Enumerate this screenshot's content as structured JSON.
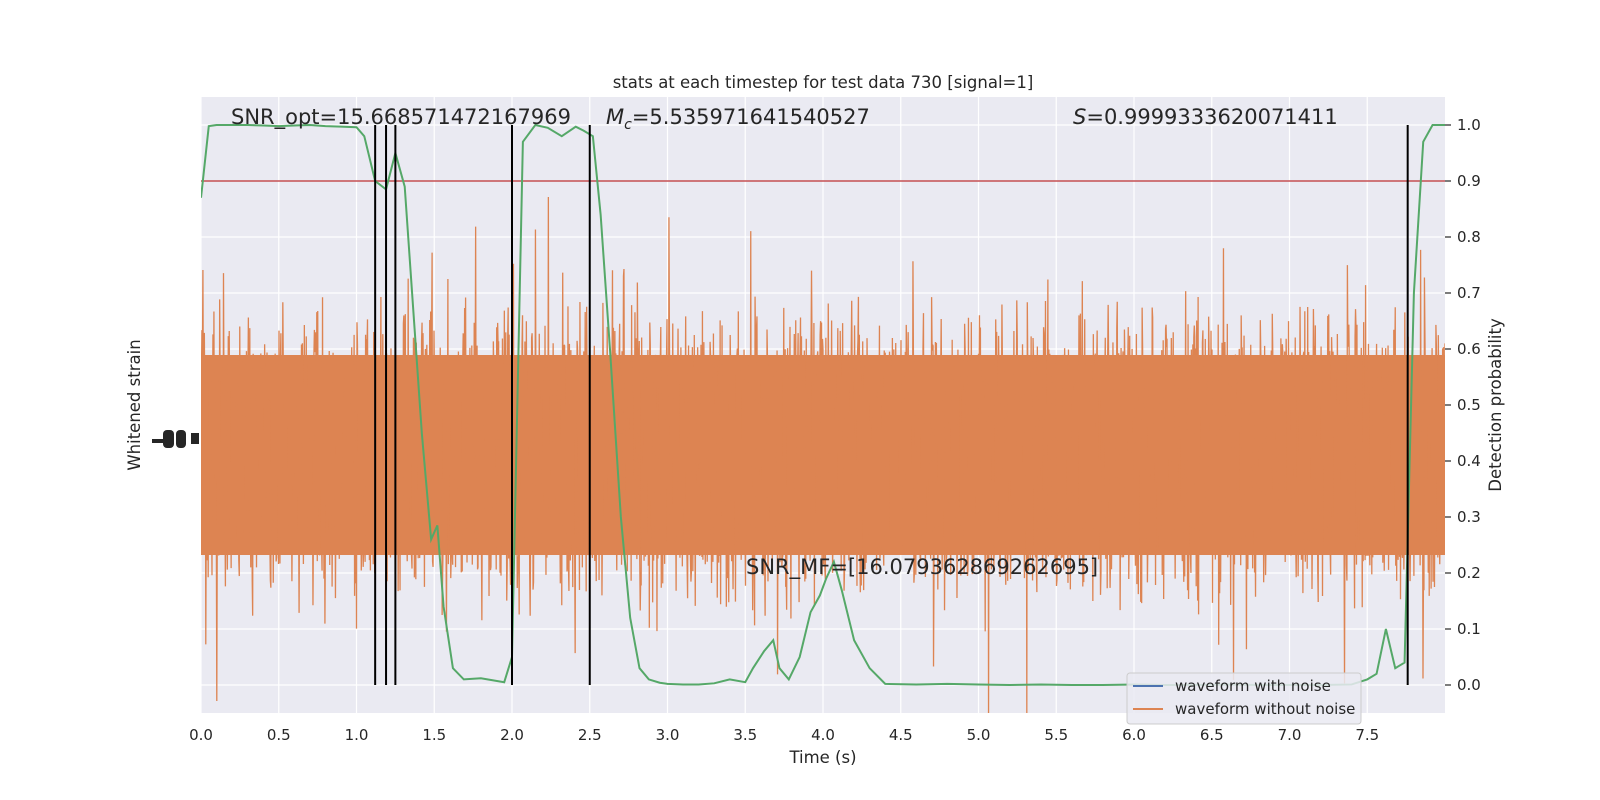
{
  "chart_data": {
    "type": "line",
    "title": "stats at each timestep for test data 730 [signal=1]",
    "xlabel": "Time (s)",
    "ylabel_left": "Whitened strain",
    "ylabel_right": "Detection probability",
    "xlim": [
      0.0,
      8.0
    ],
    "ylim_right": [
      -0.05,
      1.05
    ],
    "x_ticks": [
      "0.0",
      "0.5",
      "1.0",
      "1.5",
      "2.0",
      "2.5",
      "3.0",
      "3.5",
      "4.0",
      "4.5",
      "5.0",
      "5.5",
      "6.0",
      "6.5",
      "7.0",
      "7.5"
    ],
    "y_ticks_right": [
      "0.0",
      "0.1",
      "0.2",
      "0.3",
      "0.4",
      "0.5",
      "0.6",
      "0.7",
      "0.8",
      "0.9",
      "1.0"
    ],
    "grid": true,
    "annotations": {
      "snr_opt": "SNR_opt=15.668571472167969",
      "mc_symbol": "M",
      "mc_sub": "c",
      "mc_value": "=5.535971641540527",
      "s_symbol": "S",
      "s_value": "=0.9999333620071411",
      "snr_mf": "SNR_MF=[16.079362869262695]"
    },
    "threshold": 0.9,
    "vertical_lines_x": [
      1.12,
      1.19,
      1.25,
      2.0,
      2.5,
      7.76
    ],
    "detection_probability": {
      "x": [
        0.0,
        0.05,
        0.1,
        0.2,
        0.3,
        0.4,
        0.5,
        0.6,
        0.7,
        0.8,
        0.9,
        1.0,
        1.05,
        1.12,
        1.19,
        1.25,
        1.31,
        1.37,
        1.42,
        1.48,
        1.52,
        1.56,
        1.62,
        1.69,
        1.8,
        1.95,
        2.0,
        2.07,
        2.15,
        2.23,
        2.32,
        2.41,
        2.46,
        2.52,
        2.57,
        2.63,
        2.7,
        2.76,
        2.82,
        2.88,
        2.95,
        3.0,
        3.1,
        3.2,
        3.3,
        3.4,
        3.5,
        3.55,
        3.62,
        3.68,
        3.72,
        3.78,
        3.85,
        3.92,
        3.98,
        4.02,
        4.07,
        4.12,
        4.2,
        4.3,
        4.4,
        4.6,
        4.8,
        5.0,
        5.2,
        5.4,
        5.6,
        5.8,
        6.0,
        6.2,
        6.4,
        6.6,
        6.8,
        7.0,
        7.2,
        7.4,
        7.5,
        7.56,
        7.62,
        7.68,
        7.74,
        7.8,
        7.86,
        7.92,
        7.97,
        8.0
      ],
      "y": [
        0.87,
        0.998,
        1.0,
        1.0,
        1.0,
        0.999,
        0.998,
        0.999,
        1.0,
        0.998,
        0.997,
        0.996,
        0.98,
        0.9,
        0.885,
        0.95,
        0.89,
        0.65,
        0.45,
        0.26,
        0.285,
        0.14,
        0.03,
        0.01,
        0.012,
        0.005,
        0.05,
        0.97,
        1.0,
        0.995,
        0.98,
        0.997,
        0.99,
        0.98,
        0.84,
        0.6,
        0.3,
        0.12,
        0.03,
        0.01,
        0.004,
        0.002,
        0.001,
        0.001,
        0.003,
        0.01,
        0.005,
        0.03,
        0.06,
        0.08,
        0.03,
        0.01,
        0.05,
        0.13,
        0.16,
        0.19,
        0.22,
        0.17,
        0.08,
        0.03,
        0.002,
        0.001,
        0.002,
        0.001,
        0.0,
        0.001,
        0.0,
        0.0,
        0.001,
        0.0,
        0.0,
        0.001,
        0.0,
        0.0,
        0.0,
        0.001,
        0.01,
        0.02,
        0.1,
        0.03,
        0.04,
        0.7,
        0.97,
        1.0,
        1.0,
        1.0
      ]
    },
    "legend": {
      "placement": "lower-right",
      "entries": [
        {
          "label": "waveform with noise",
          "color": "#4c72b0"
        },
        {
          "label": "waveform without noise",
          "color": "#dd8452"
        }
      ]
    },
    "colors": {
      "background": "#eaeaf2",
      "grid": "#ffffff",
      "strain": "#dd8452",
      "probability": "#55a868",
      "threshold": "#c44e52",
      "vlines": "#000000"
    }
  }
}
